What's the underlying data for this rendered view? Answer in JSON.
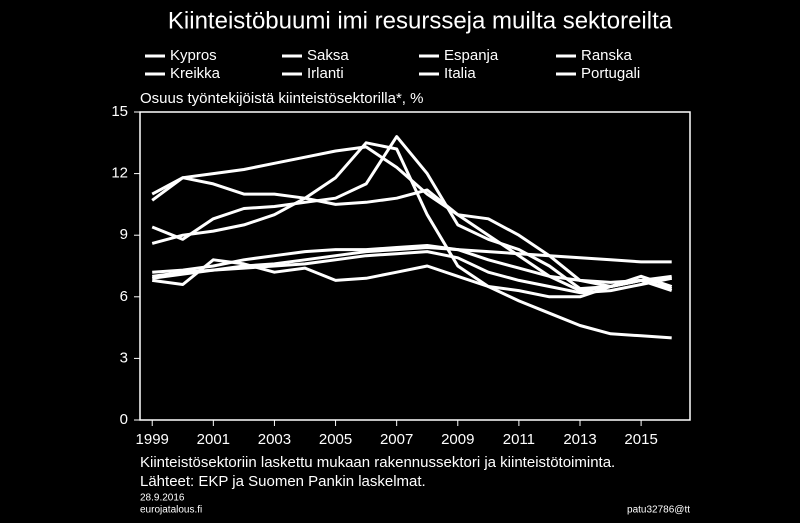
{
  "chart_data": {
    "type": "line",
    "title": "Kiinteistöbuumi imi resursseja muilta sektoreilta",
    "y_label": "Osuus työntekijöistä kiinteistösektorilla*, %",
    "x": [
      1999,
      2000,
      2001,
      2002,
      2003,
      2004,
      2005,
      2006,
      2007,
      2008,
      2009,
      2010,
      2011,
      2012,
      2013,
      2014,
      2015,
      2016
    ],
    "series": [
      {
        "name": "Kypros",
        "color": "#ffffff",
        "values": [
          11.0,
          11.8,
          12.0,
          12.2,
          12.5,
          12.8,
          13.1,
          13.3,
          12.3,
          11.0,
          10.0,
          9.8,
          9.0,
          8.0,
          6.8,
          6.5,
          6.8,
          7.0
        ]
      },
      {
        "name": "Saksa",
        "color": "#ffffff",
        "values": [
          7.2,
          7.3,
          7.5,
          7.8,
          8.0,
          8.2,
          8.3,
          8.3,
          8.4,
          8.5,
          8.3,
          7.8,
          7.4,
          7.0,
          6.8,
          6.7,
          6.8,
          6.9
        ]
      },
      {
        "name": "Espanja",
        "color": "#ffffff",
        "values": [
          9.4,
          8.8,
          9.8,
          10.3,
          10.4,
          10.6,
          10.8,
          11.5,
          13.8,
          12.0,
          9.5,
          8.8,
          8.3,
          7.5,
          6.4,
          6.5,
          6.8,
          6.4
        ]
      },
      {
        "name": "Ranska",
        "color": "#ffffff",
        "values": [
          6.9,
          7.1,
          7.3,
          7.5,
          7.6,
          7.8,
          8.0,
          8.2,
          8.3,
          8.4,
          8.3,
          8.2,
          8.1,
          8.0,
          7.9,
          7.8,
          7.7,
          7.7
        ]
      },
      {
        "name": "Kreikka",
        "color": "#ffffff",
        "values": [
          6.8,
          6.6,
          7.8,
          7.6,
          7.2,
          7.4,
          6.8,
          6.9,
          7.2,
          7.5,
          7.0,
          6.5,
          6.3,
          6.0,
          6.0,
          6.5,
          6.8,
          6.3
        ]
      },
      {
        "name": "Irlanti",
        "color": "#ffffff",
        "values": [
          8.6,
          9.0,
          9.2,
          9.5,
          10.0,
          10.8,
          11.8,
          13.5,
          13.2,
          10.0,
          7.5,
          6.5,
          5.8,
          5.2,
          4.6,
          4.2,
          4.1,
          4.0
        ]
      },
      {
        "name": "Italia",
        "color": "#ffffff",
        "values": [
          7.0,
          7.2,
          7.3,
          7.4,
          7.5,
          7.6,
          7.8,
          8.0,
          8.1,
          8.2,
          7.9,
          7.2,
          6.8,
          6.5,
          6.2,
          6.3,
          6.6,
          6.9
        ]
      },
      {
        "name": "Portugali",
        "color": "#ffffff",
        "values": [
          10.7,
          11.8,
          11.5,
          11.0,
          11.0,
          10.8,
          10.5,
          10.6,
          10.8,
          11.2,
          10.0,
          9.0,
          8.0,
          7.0,
          6.3,
          6.5,
          7.0,
          6.5
        ]
      }
    ],
    "xlim": [
      1998.6,
      2016.6
    ],
    "xticks": [
      1999,
      2001,
      2003,
      2005,
      2007,
      2009,
      2011,
      2013,
      2015
    ],
    "ylim": [
      0,
      15
    ],
    "yticks": [
      0,
      3,
      6,
      9,
      12,
      15
    ],
    "notes": [
      "Kiinteistösektoriin laskettu mukaan rakennussektori ja kiinteistötoiminta.",
      "Lähteet: EKP ja Suomen Pankin laskelmat."
    ],
    "date": "28.9.2016",
    "source": "eurojatalous.fi",
    "credit": "patu32786@tt"
  }
}
